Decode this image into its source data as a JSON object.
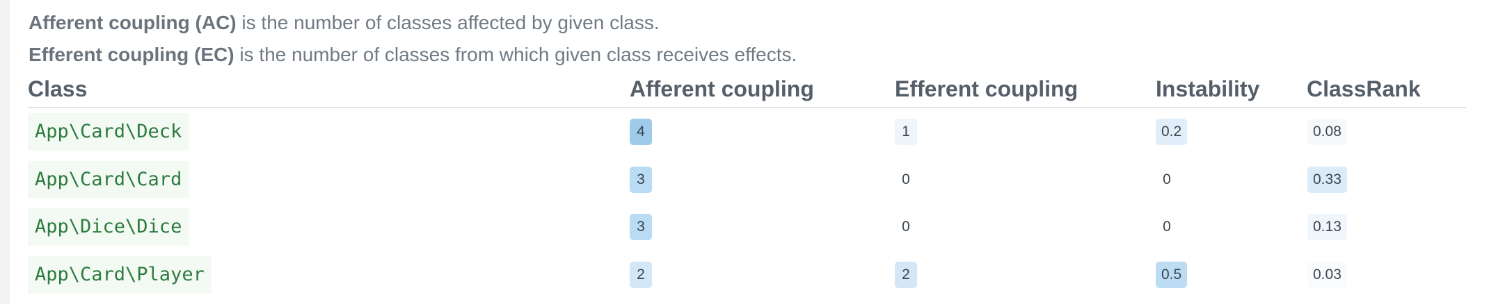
{
  "description": {
    "afferent_term": "Afferent coupling (AC)",
    "afferent_text": " is the number of classes affected by given class.",
    "efferent_term": "Efferent coupling (EC)",
    "efferent_text": " is the number of classes from which given class receives effects."
  },
  "table": {
    "columns": [
      "Class",
      "Afferent coupling",
      "Efferent coupling",
      "Instability",
      "ClassRank"
    ],
    "rows": [
      {
        "class": "App\\Card\\Deck",
        "afferent": "4",
        "efferent": "1",
        "instability": "0.2",
        "classrank": "0.08"
      },
      {
        "class": "App\\Card\\Card",
        "afferent": "3",
        "efferent": "0",
        "instability": "0",
        "classrank": "0.33"
      },
      {
        "class": "App\\Dice\\Dice",
        "afferent": "3",
        "efferent": "0",
        "instability": "0",
        "classrank": "0.13"
      },
      {
        "class": "App\\Card\\Player",
        "afferent": "2",
        "efferent": "2",
        "instability": "0.5",
        "classrank": "0.03"
      }
    ],
    "badge_colors": {
      "row0": {
        "afferent": "#9fcbeb",
        "efferent": "#eef5fb",
        "instability": "#e1eef9",
        "classrank": "#f6f9fc"
      },
      "row1": {
        "afferent": "#b9dbf3",
        "efferent": "#ffffff",
        "instability": "#ffffff",
        "classrank": "#dcebf8"
      },
      "row2": {
        "afferent": "#b9dbf3",
        "efferent": "#ffffff",
        "instability": "#ffffff",
        "classrank": "#f0f6fb"
      },
      "row3": {
        "afferent": "#d3e7f6",
        "efferent": "#d3e7f6",
        "instability": "#bcdcf3",
        "classrank": "#fafbfd"
      }
    }
  }
}
